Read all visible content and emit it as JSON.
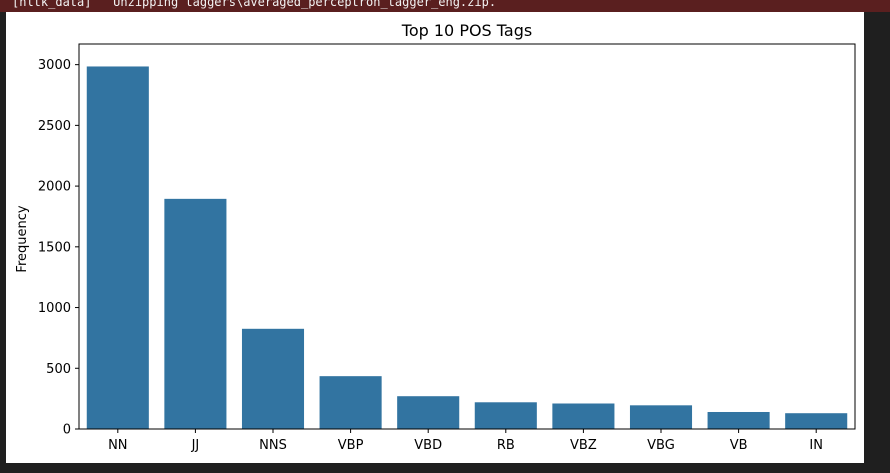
{
  "output_log": {
    "stderr_line": "[nltk_data]   Unzipping taggers\\averaged_perceptron_tagger_eng.zip."
  },
  "chart_data": {
    "type": "bar",
    "title": "Top 10 POS Tags",
    "xlabel": "",
    "ylabel": "Frequency",
    "categories": [
      "NN",
      "JJ",
      "NNS",
      "VBP",
      "VBD",
      "RB",
      "VBZ",
      "VBG",
      "VB",
      "IN"
    ],
    "values": [
      2985,
      1895,
      825,
      435,
      270,
      220,
      210,
      195,
      140,
      130
    ],
    "ylim": [
      0,
      3170
    ],
    "yticks": [
      0,
      500,
      1000,
      1500,
      2000,
      2500,
      3000
    ],
    "grid": false,
    "legend": "none",
    "bar_color": "#3274a1"
  }
}
